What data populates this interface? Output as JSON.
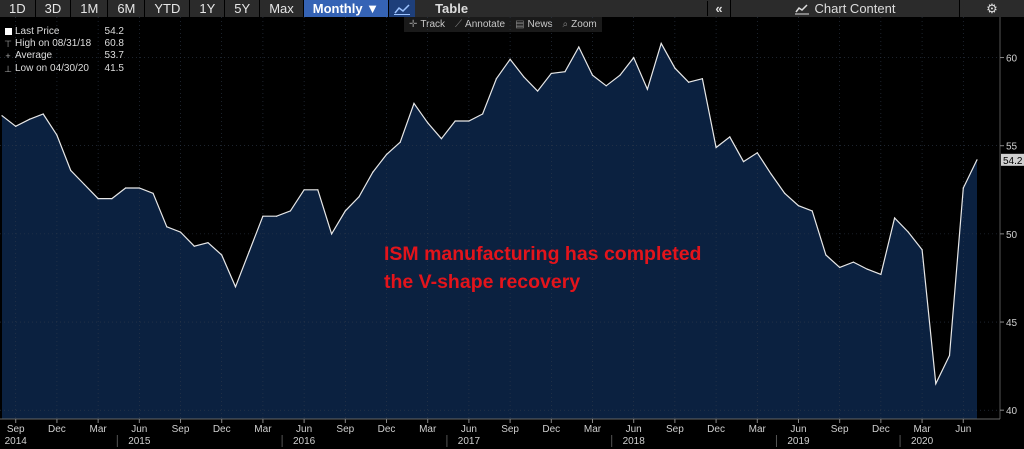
{
  "toolbar": {
    "periods": [
      "1D",
      "3D",
      "1M",
      "6M",
      "YTD",
      "1Y",
      "5Y",
      "Max"
    ],
    "frequency": "Monthly ▼",
    "table_label": "Table",
    "chart_content_label": "Chart Content",
    "collapse_glyph": "«",
    "gear_glyph": "⚙"
  },
  "subtools": [
    "Track",
    "Annotate",
    "News",
    "Zoom"
  ],
  "legend": [
    {
      "label": "Last Price",
      "value": "54.2"
    },
    {
      "label": "High on 08/31/18",
      "value": "60.8"
    },
    {
      "label": "Average",
      "value": "53.7"
    },
    {
      "label": "Low on 04/30/20",
      "value": "41.5"
    }
  ],
  "annotation": [
    "ISM manufacturing has completed",
    "the V-shape recovery"
  ],
  "colors": {
    "line": "#e8e8e8",
    "fill": "#0b2140",
    "annotation": "#e3141b",
    "last_price_tag": "#d0d0d0"
  },
  "chart_data": {
    "type": "area",
    "series": [
      {
        "x": [
          "2014-08",
          "2014-09",
          "2014-10",
          "2014-11",
          "2014-12",
          "2015-01",
          "2015-02",
          "2015-03",
          "2015-04",
          "2015-05",
          "2015-06",
          "2015-07",
          "2015-08",
          "2015-09",
          "2015-10",
          "2015-11",
          "2015-12",
          "2016-01",
          "2016-02",
          "2016-03",
          "2016-04",
          "2016-05",
          "2016-06",
          "2016-07",
          "2016-08",
          "2016-09",
          "2016-10",
          "2016-11",
          "2016-12",
          "2017-01",
          "2017-02",
          "2017-03",
          "2017-04",
          "2017-05",
          "2017-06",
          "2017-07",
          "2017-08",
          "2017-09",
          "2017-10",
          "2017-11",
          "2017-12",
          "2018-01",
          "2018-02",
          "2018-03",
          "2018-04",
          "2018-05",
          "2018-06",
          "2018-07",
          "2018-08",
          "2018-09",
          "2018-10",
          "2018-11",
          "2018-12",
          "2019-01",
          "2019-02",
          "2019-03",
          "2019-04",
          "2019-05",
          "2019-06",
          "2019-07",
          "2019-08",
          "2019-09",
          "2019-10",
          "2019-11",
          "2019-12",
          "2020-01",
          "2020-02",
          "2020-03",
          "2020-04",
          "2020-05",
          "2020-06",
          "2020-07"
        ],
        "values": [
          56.7,
          56.1,
          56.5,
          56.8,
          55.6,
          53.6,
          52.8,
          52.0,
          52.0,
          52.6,
          52.6,
          52.3,
          50.4,
          50.1,
          49.3,
          49.5,
          48.8,
          47.0,
          49.0,
          51.0,
          51.0,
          51.3,
          52.5,
          52.5,
          50.0,
          51.3,
          52.1,
          53.5,
          54.5,
          55.2,
          57.4,
          56.3,
          55.4,
          56.4,
          56.4,
          56.8,
          58.8,
          59.9,
          58.9,
          58.1,
          59.1,
          59.2,
          60.6,
          59.0,
          58.4,
          59.0,
          60.0,
          58.2,
          60.8,
          59.4,
          58.6,
          58.8,
          54.9,
          55.5,
          54.1,
          54.6,
          53.4,
          52.3,
          51.6,
          51.3,
          48.8,
          48.1,
          48.4,
          48.0,
          47.7,
          50.9,
          50.1,
          49.1,
          41.5,
          43.1,
          52.6,
          54.2
        ]
      }
    ],
    "ylim": [
      39.5,
      62.3
    ],
    "yticks": [
      40,
      45,
      50,
      55,
      60
    ],
    "ytick_labels": [
      "40",
      "45",
      "50",
      "55",
      "60"
    ],
    "xticks": [
      {
        "label": "Sep",
        "year": "2014",
        "date": "2014-09"
      },
      {
        "label": "Dec",
        "year": "",
        "date": "2014-12"
      },
      {
        "label": "Mar",
        "year": "",
        "date": "2015-03"
      },
      {
        "label": "Jun",
        "year": "2015",
        "date": "2015-06"
      },
      {
        "label": "Sep",
        "year": "",
        "date": "2015-09"
      },
      {
        "label": "Dec",
        "year": "",
        "date": "2015-12"
      },
      {
        "label": "Mar",
        "year": "",
        "date": "2016-03"
      },
      {
        "label": "Jun",
        "year": "2016",
        "date": "2016-06"
      },
      {
        "label": "Sep",
        "year": "",
        "date": "2016-09"
      },
      {
        "label": "Dec",
        "year": "",
        "date": "2016-12"
      },
      {
        "label": "Mar",
        "year": "",
        "date": "2017-03"
      },
      {
        "label": "Jun",
        "year": "2017",
        "date": "2017-06"
      },
      {
        "label": "Sep",
        "year": "",
        "date": "2017-09"
      },
      {
        "label": "Dec",
        "year": "",
        "date": "2017-12"
      },
      {
        "label": "Mar",
        "year": "",
        "date": "2018-03"
      },
      {
        "label": "Jun",
        "year": "2018",
        "date": "2018-06"
      },
      {
        "label": "Sep",
        "year": "",
        "date": "2018-09"
      },
      {
        "label": "Dec",
        "year": "",
        "date": "2018-12"
      },
      {
        "label": "Mar",
        "year": "",
        "date": "2019-03"
      },
      {
        "label": "Jun",
        "year": "2019",
        "date": "2019-06"
      },
      {
        "label": "Sep",
        "year": "",
        "date": "2019-09"
      },
      {
        "label": "Dec",
        "year": "",
        "date": "2019-12"
      },
      {
        "label": "Mar",
        "year": "2020",
        "date": "2020-03"
      },
      {
        "label": "Jun",
        "year": "",
        "date": "2020-06"
      }
    ],
    "last_price_tag": "54.2",
    "grid": true
  }
}
